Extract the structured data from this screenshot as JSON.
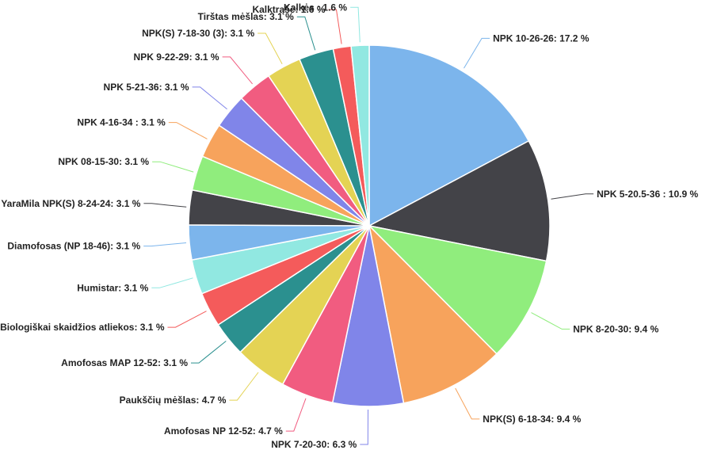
{
  "chart_data": {
    "type": "pie",
    "start_angle_deg": 0,
    "direction": "clockwise",
    "slices": [
      {
        "label": "NPK 10-26-26",
        "value": 17.2,
        "text": "NPK 10-26-26: 17.2 %",
        "color": "#7cb5ec"
      },
      {
        "label": "NPK 5-20.5-36",
        "value": 10.9,
        "text": "NPK 5-20.5-36 : 10.9 %",
        "color": "#434348"
      },
      {
        "label": "NPK 8-20-30",
        "value": 9.4,
        "text": "NPK 8-20-30: 9.4 %",
        "color": "#90ed7d"
      },
      {
        "label": "NPK(S) 6-18-34",
        "value": 9.4,
        "text": "NPK(S) 6-18-34: 9.4 %",
        "color": "#f7a35c"
      },
      {
        "label": "NPK 7-20-30",
        "value": 6.3,
        "text": "NPK 7-20-30: 6.3 %",
        "color": "#8085e9"
      },
      {
        "label": "Amofosas NP 12-52",
        "value": 4.7,
        "text": "Amofosas NP 12-52: 4.7 %",
        "color": "#f15c80"
      },
      {
        "label": "Paukščių mėšlas",
        "value": 4.7,
        "text": "Paukščių mėšlas: 4.7 %",
        "color": "#e4d354"
      },
      {
        "label": "Amofosas MAP 12-52",
        "value": 3.1,
        "text": "Amofosas MAP 12-52: 3.1 %",
        "color": "#2b908f"
      },
      {
        "label": "Biologiškai skaidžios atliekos",
        "value": 3.1,
        "text": "Biologiškai skaidžios atliekos: 3.1 %",
        "color": "#f45b5b"
      },
      {
        "label": "Humistar",
        "value": 3.1,
        "text": "Humistar: 3.1 %",
        "color": "#91e8e1"
      },
      {
        "label": "Diamofosas (NP 18-46)",
        "value": 3.1,
        "text": "Diamofosas (NP 18-46): 3.1 %",
        "color": "#7cb5ec"
      },
      {
        "label": "YaraMila NPK(S) 8-24-24",
        "value": 3.1,
        "text": "YaraMila NPK(S) 8-24-24: 3.1 %",
        "color": "#434348"
      },
      {
        "label": "NPK 08-15-30",
        "value": 3.1,
        "text": "NPK 08-15-30: 3.1 %",
        "color": "#90ed7d"
      },
      {
        "label": "NPK 4-16-34",
        "value": 3.1,
        "text": "NPK 4-16-34 : 3.1 %",
        "color": "#f7a35c"
      },
      {
        "label": "NPK 5-21-36",
        "value": 3.1,
        "text": "NPK 5-21-36: 3.1 %",
        "color": "#8085e9"
      },
      {
        "label": "NPK 9-22-29",
        "value": 3.1,
        "text": "NPK 9-22-29: 3.1 %",
        "color": "#f15c80"
      },
      {
        "label": "NPK(S) 7-18-30 (3)",
        "value": 3.1,
        "text": "NPK(S) 7-18-30 (3): 3.1 %",
        "color": "#e4d354"
      },
      {
        "label": "Tirštas mėšlas",
        "value": 3.1,
        "text": "Tirštas mėšlas: 3.1 %",
        "color": "#2b908f"
      },
      {
        "label": "Kalktrąšė",
        "value": 1.6,
        "text": "Kalktrąšė: 1.6 %",
        "color": "#f45b5b"
      },
      {
        "label": "Kalkės",
        "value": 1.6,
        "text": "Kalkės : 1.6 %",
        "color": "#91e8e1"
      }
    ]
  }
}
